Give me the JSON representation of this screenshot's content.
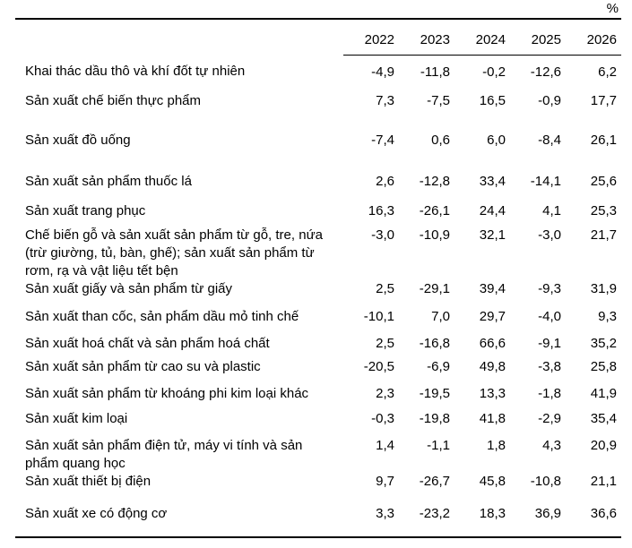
{
  "unit_label": "%",
  "table": {
    "year_headers": [
      "2022",
      "2023",
      "2024",
      "2025",
      "2026"
    ],
    "rows": [
      {
        "label": "Khai thác dầu thô và khí đốt tự nhiên",
        "values": [
          "-4,9",
          "-11,8",
          "-0,2",
          "-12,6",
          "6,2"
        ]
      },
      {
        "label": "Sản xuất chế biến thực phẩm",
        "values": [
          "7,3",
          "-7,5",
          "16,5",
          "-0,9",
          "17,7"
        ]
      },
      {
        "label": "Sản xuất đồ uống",
        "values": [
          "-7,4",
          "0,6",
          "6,0",
          "-8,4",
          "26,1"
        ]
      },
      {
        "label": "Sản xuất sản phẩm thuốc lá",
        "values": [
          "2,6",
          "-12,8",
          "33,4",
          "-14,1",
          "25,6"
        ]
      },
      {
        "label": "Sản xuất trang phục",
        "values": [
          "16,3",
          "-26,1",
          "24,4",
          "4,1",
          "25,3"
        ]
      },
      {
        "label": "Chế biến gỗ và sản xuất sản phẩm từ gỗ, tre, nứa (trừ giường, tủ, bàn, ghế); sản xuất sản phẩm từ rơm, rạ và vật liệu tết bện",
        "values": [
          "-3,0",
          "-10,9",
          "32,1",
          "-3,0",
          "21,7"
        ]
      },
      {
        "label": "Sản xuất giấy và sản phẩm từ giấy",
        "values": [
          "2,5",
          "-29,1",
          "39,4",
          "-9,3",
          "31,9"
        ]
      },
      {
        "label": "Sản xuất than cốc, sản phẩm dầu mỏ tinh chế",
        "values": [
          "-10,1",
          "7,0",
          "29,7",
          "-4,0",
          "9,3"
        ]
      },
      {
        "label": "Sản xuất hoá chất và sản phẩm hoá chất",
        "values": [
          "2,5",
          "-16,8",
          "66,6",
          "-9,1",
          "35,2"
        ]
      },
      {
        "label": "Sản xuất sản phẩm từ cao su và plastic",
        "values": [
          "-20,5",
          "-6,9",
          "49,8",
          "-3,8",
          "25,8"
        ]
      },
      {
        "label": "Sản xuất sản phẩm từ khoáng phi kim loại khác",
        "values": [
          "2,3",
          "-19,5",
          "13,3",
          "-1,8",
          "41,9"
        ]
      },
      {
        "label": "Sản xuất kim loại",
        "values": [
          "-0,3",
          "-19,8",
          "41,8",
          "-2,9",
          "35,4"
        ]
      },
      {
        "label": "Sản xuất sản phẩm điện tử, máy vi tính và sản phẩm quang học",
        "values": [
          "1,4",
          "-1,1",
          "1,8",
          "4,3",
          "20,9"
        ]
      },
      {
        "label": "Sản xuất thiết bị điện",
        "values": [
          "9,7",
          "-26,7",
          "45,8",
          "-10,8",
          "21,1"
        ]
      },
      {
        "label": "Sản xuất xe có động cơ",
        "values": [
          "3,3",
          "-23,2",
          "18,3",
          "36,9",
          "36,6"
        ]
      }
    ]
  },
  "chart_data": {
    "type": "table",
    "title": "",
    "unit": "%",
    "columns": [
      "2022",
      "2023",
      "2024",
      "2025",
      "2026"
    ],
    "series": [
      {
        "name": "Khai thác dầu thô và khí đốt tự nhiên",
        "values": [
          -4.9,
          -11.8,
          -0.2,
          -12.6,
          6.2
        ]
      },
      {
        "name": "Sản xuất chế biến thực phẩm",
        "values": [
          7.3,
          -7.5,
          16.5,
          -0.9,
          17.7
        ]
      },
      {
        "name": "Sản xuất đồ uống",
        "values": [
          -7.4,
          0.6,
          6.0,
          -8.4,
          26.1
        ]
      },
      {
        "name": "Sản xuất sản phẩm thuốc lá",
        "values": [
          2.6,
          -12.8,
          33.4,
          -14.1,
          25.6
        ]
      },
      {
        "name": "Sản xuất trang phục",
        "values": [
          16.3,
          -26.1,
          24.4,
          4.1,
          25.3
        ]
      },
      {
        "name": "Chế biến gỗ và sản xuất sản phẩm từ gỗ, tre, nứa (trừ giường, tủ, bàn, ghế); sản xuất sản phẩm từ rơm, rạ và vật liệu tết bện",
        "values": [
          -3.0,
          -10.9,
          32.1,
          -3.0,
          21.7
        ]
      },
      {
        "name": "Sản xuất giấy và sản phẩm từ giấy",
        "values": [
          2.5,
          -29.1,
          39.4,
          -9.3,
          31.9
        ]
      },
      {
        "name": "Sản xuất than cốc, sản phẩm dầu mỏ tinh chế",
        "values": [
          -10.1,
          7.0,
          29.7,
          -4.0,
          9.3
        ]
      },
      {
        "name": "Sản xuất hoá chất và sản phẩm hoá chất",
        "values": [
          2.5,
          -16.8,
          66.6,
          -9.1,
          35.2
        ]
      },
      {
        "name": "Sản xuất sản phẩm từ cao su và plastic",
        "values": [
          -20.5,
          -6.9,
          49.8,
          -3.8,
          25.8
        ]
      },
      {
        "name": "Sản xuất sản phẩm từ khoáng phi kim loại khác",
        "values": [
          2.3,
          -19.5,
          13.3,
          -1.8,
          41.9
        ]
      },
      {
        "name": "Sản xuất kim loại",
        "values": [
          -0.3,
          -19.8,
          41.8,
          -2.9,
          35.4
        ]
      },
      {
        "name": "Sản xuất sản phẩm điện tử, máy vi tính và sản phẩm quang học",
        "values": [
          1.4,
          -1.1,
          1.8,
          4.3,
          20.9
        ]
      },
      {
        "name": "Sản xuất thiết bị điện",
        "values": [
          9.7,
          -26.7,
          45.8,
          -10.8,
          21.1
        ]
      },
      {
        "name": "Sản xuất xe có động cơ",
        "values": [
          3.3,
          -23.2,
          18.3,
          36.9,
          36.6
        ]
      }
    ]
  }
}
